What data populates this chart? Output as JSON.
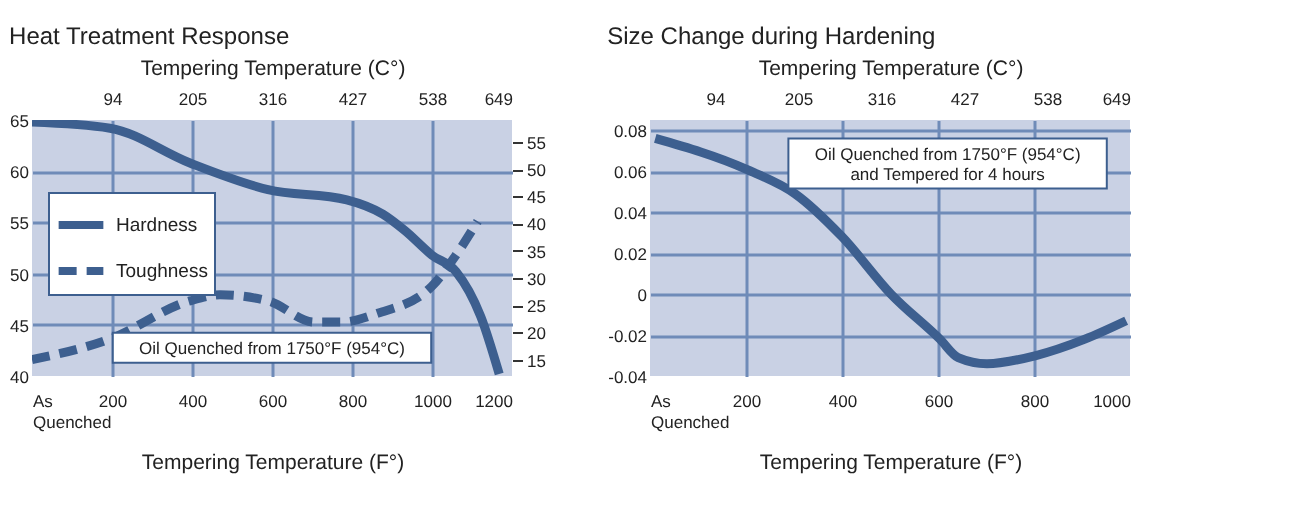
{
  "chart_data": [
    {
      "type": "line",
      "title": "Heat Treatment Response",
      "xlabel": "Tempering Temperature (F°)",
      "x2label": "Tempering Temperature (C°)",
      "xlim": [
        0,
        1200
      ],
      "xticks": [
        {
          "value": 0,
          "label": "As Quenched"
        },
        200,
        400,
        600,
        800,
        1000,
        1200
      ],
      "x2lim": [
        -17,
        649
      ],
      "x2ticks": [
        94,
        205,
        316,
        427,
        538,
        649
      ],
      "ylim": [
        40,
        65
      ],
      "yticks": [
        40,
        45,
        50,
        55,
        60,
        65
      ],
      "y2lim": [
        12,
        59
      ],
      "y2ticks": [
        15,
        20,
        25,
        30,
        35,
        40,
        45,
        50,
        55
      ],
      "grid": true,
      "legend": "left",
      "annotations": [
        "Oil Quenched from 1750°F (954°C)"
      ],
      "series": [
        {
          "name": "Hardness",
          "color": "#3d5f8f",
          "line_style": "solid",
          "x": [
            0,
            195,
            395,
            590,
            787,
            877,
            932,
            1000,
            1060,
            1122,
            1168
          ],
          "values": [
            64.8,
            64.2,
            60.8,
            58.2,
            57.2,
            55.8,
            54.2,
            51.8,
            50.2,
            45.8,
            40.2
          ]
        },
        {
          "name": "Toughness",
          "color": "#3d5f8f",
          "line_style": "dashed",
          "axis": "y2",
          "x": [
            0,
            195,
            395,
            470,
            590,
            705,
            773,
            864,
            1000,
            1060,
            1114
          ],
          "values": [
            15,
            18.8,
            25.8,
            26.9,
            25.8,
            21.9,
            21.9,
            23.5,
            28.5,
            34.2,
            40.4
          ]
        }
      ]
    },
    {
      "type": "line",
      "title": "Size Change during Hardening",
      "xlabel": "Tempering Temperature (F°)",
      "x2label": "Tempering Temperature (C°)",
      "xlim": [
        0,
        1000
      ],
      "xticks": [
        {
          "value": 0,
          "label": "As Quenched"
        },
        200,
        400,
        600,
        800,
        1000
      ],
      "x2lim": [
        7,
        649
      ],
      "x2ticks": [
        94,
        205,
        316,
        427,
        538,
        649
      ],
      "ylim": [
        -0.04,
        0.085
      ],
      "yticks": [
        -0.04,
        -0.02,
        0,
        0.02,
        0.04,
        0.06,
        0.08
      ],
      "grid": true,
      "annotations": [
        "Oil Quenched from 1750°F (954°C)",
        "and Tempered for 4 hours"
      ],
      "series": [
        {
          "color": "#3d5f8f",
          "x": [
            11,
            200,
            302,
            400,
            502,
            604,
            642,
            702,
            804,
            906,
            992
          ],
          "values": [
            0.076,
            0.061,
            0.049,
            0.028,
            0,
            -0.022,
            -0.031,
            -0.034,
            -0.03,
            -0.022,
            -0.013
          ]
        }
      ]
    }
  ]
}
